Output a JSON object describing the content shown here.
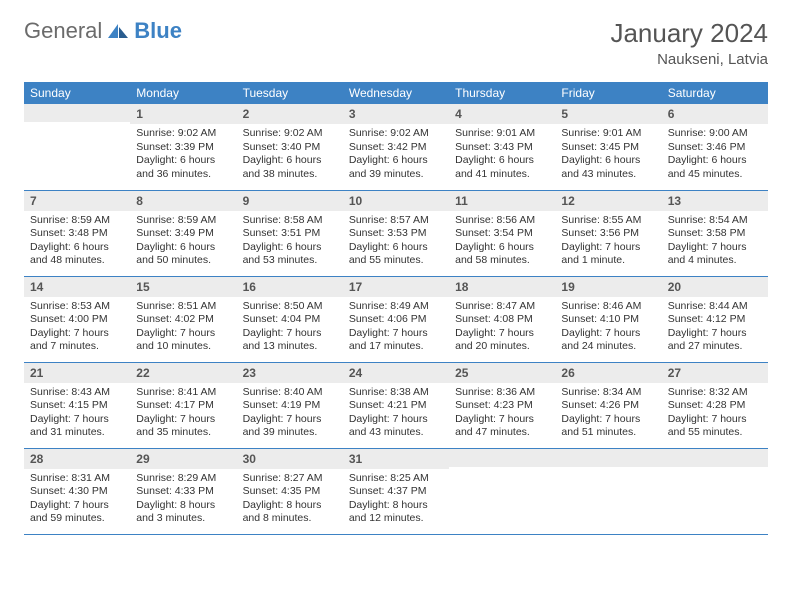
{
  "logo": {
    "text1": "General",
    "text2": "Blue"
  },
  "title": "January 2024",
  "location": "Naukseni, Latvia",
  "colors": {
    "header_bg": "#3d82c4",
    "header_text": "#ffffff",
    "daynum_bg": "#ececec",
    "daynum_text": "#555555",
    "cell_text": "#333333",
    "divider": "#3d82c4",
    "page_bg": "#ffffff",
    "title_color": "#555555"
  },
  "typography": {
    "month_title_fontsize": 26,
    "location_fontsize": 15,
    "dayheader_fontsize": 12,
    "daynum_fontsize": 12,
    "content_fontsize": 10.5
  },
  "day_headers": [
    "Sunday",
    "Monday",
    "Tuesday",
    "Wednesday",
    "Thursday",
    "Friday",
    "Saturday"
  ],
  "weeks": [
    [
      {
        "num": "",
        "lines": []
      },
      {
        "num": "1",
        "lines": [
          "Sunrise: 9:02 AM",
          "Sunset: 3:39 PM",
          "Daylight: 6 hours",
          "and 36 minutes."
        ]
      },
      {
        "num": "2",
        "lines": [
          "Sunrise: 9:02 AM",
          "Sunset: 3:40 PM",
          "Daylight: 6 hours",
          "and 38 minutes."
        ]
      },
      {
        "num": "3",
        "lines": [
          "Sunrise: 9:02 AM",
          "Sunset: 3:42 PM",
          "Daylight: 6 hours",
          "and 39 minutes."
        ]
      },
      {
        "num": "4",
        "lines": [
          "Sunrise: 9:01 AM",
          "Sunset: 3:43 PM",
          "Daylight: 6 hours",
          "and 41 minutes."
        ]
      },
      {
        "num": "5",
        "lines": [
          "Sunrise: 9:01 AM",
          "Sunset: 3:45 PM",
          "Daylight: 6 hours",
          "and 43 minutes."
        ]
      },
      {
        "num": "6",
        "lines": [
          "Sunrise: 9:00 AM",
          "Sunset: 3:46 PM",
          "Daylight: 6 hours",
          "and 45 minutes."
        ]
      }
    ],
    [
      {
        "num": "7",
        "lines": [
          "Sunrise: 8:59 AM",
          "Sunset: 3:48 PM",
          "Daylight: 6 hours",
          "and 48 minutes."
        ]
      },
      {
        "num": "8",
        "lines": [
          "Sunrise: 8:59 AM",
          "Sunset: 3:49 PM",
          "Daylight: 6 hours",
          "and 50 minutes."
        ]
      },
      {
        "num": "9",
        "lines": [
          "Sunrise: 8:58 AM",
          "Sunset: 3:51 PM",
          "Daylight: 6 hours",
          "and 53 minutes."
        ]
      },
      {
        "num": "10",
        "lines": [
          "Sunrise: 8:57 AM",
          "Sunset: 3:53 PM",
          "Daylight: 6 hours",
          "and 55 minutes."
        ]
      },
      {
        "num": "11",
        "lines": [
          "Sunrise: 8:56 AM",
          "Sunset: 3:54 PM",
          "Daylight: 6 hours",
          "and 58 minutes."
        ]
      },
      {
        "num": "12",
        "lines": [
          "Sunrise: 8:55 AM",
          "Sunset: 3:56 PM",
          "Daylight: 7 hours",
          "and 1 minute."
        ]
      },
      {
        "num": "13",
        "lines": [
          "Sunrise: 8:54 AM",
          "Sunset: 3:58 PM",
          "Daylight: 7 hours",
          "and 4 minutes."
        ]
      }
    ],
    [
      {
        "num": "14",
        "lines": [
          "Sunrise: 8:53 AM",
          "Sunset: 4:00 PM",
          "Daylight: 7 hours",
          "and 7 minutes."
        ]
      },
      {
        "num": "15",
        "lines": [
          "Sunrise: 8:51 AM",
          "Sunset: 4:02 PM",
          "Daylight: 7 hours",
          "and 10 minutes."
        ]
      },
      {
        "num": "16",
        "lines": [
          "Sunrise: 8:50 AM",
          "Sunset: 4:04 PM",
          "Daylight: 7 hours",
          "and 13 minutes."
        ]
      },
      {
        "num": "17",
        "lines": [
          "Sunrise: 8:49 AM",
          "Sunset: 4:06 PM",
          "Daylight: 7 hours",
          "and 17 minutes."
        ]
      },
      {
        "num": "18",
        "lines": [
          "Sunrise: 8:47 AM",
          "Sunset: 4:08 PM",
          "Daylight: 7 hours",
          "and 20 minutes."
        ]
      },
      {
        "num": "19",
        "lines": [
          "Sunrise: 8:46 AM",
          "Sunset: 4:10 PM",
          "Daylight: 7 hours",
          "and 24 minutes."
        ]
      },
      {
        "num": "20",
        "lines": [
          "Sunrise: 8:44 AM",
          "Sunset: 4:12 PM",
          "Daylight: 7 hours",
          "and 27 minutes."
        ]
      }
    ],
    [
      {
        "num": "21",
        "lines": [
          "Sunrise: 8:43 AM",
          "Sunset: 4:15 PM",
          "Daylight: 7 hours",
          "and 31 minutes."
        ]
      },
      {
        "num": "22",
        "lines": [
          "Sunrise: 8:41 AM",
          "Sunset: 4:17 PM",
          "Daylight: 7 hours",
          "and 35 minutes."
        ]
      },
      {
        "num": "23",
        "lines": [
          "Sunrise: 8:40 AM",
          "Sunset: 4:19 PM",
          "Daylight: 7 hours",
          "and 39 minutes."
        ]
      },
      {
        "num": "24",
        "lines": [
          "Sunrise: 8:38 AM",
          "Sunset: 4:21 PM",
          "Daylight: 7 hours",
          "and 43 minutes."
        ]
      },
      {
        "num": "25",
        "lines": [
          "Sunrise: 8:36 AM",
          "Sunset: 4:23 PM",
          "Daylight: 7 hours",
          "and 47 minutes."
        ]
      },
      {
        "num": "26",
        "lines": [
          "Sunrise: 8:34 AM",
          "Sunset: 4:26 PM",
          "Daylight: 7 hours",
          "and 51 minutes."
        ]
      },
      {
        "num": "27",
        "lines": [
          "Sunrise: 8:32 AM",
          "Sunset: 4:28 PM",
          "Daylight: 7 hours",
          "and 55 minutes."
        ]
      }
    ],
    [
      {
        "num": "28",
        "lines": [
          "Sunrise: 8:31 AM",
          "Sunset: 4:30 PM",
          "Daylight: 7 hours",
          "and 59 minutes."
        ]
      },
      {
        "num": "29",
        "lines": [
          "Sunrise: 8:29 AM",
          "Sunset: 4:33 PM",
          "Daylight: 8 hours",
          "and 3 minutes."
        ]
      },
      {
        "num": "30",
        "lines": [
          "Sunrise: 8:27 AM",
          "Sunset: 4:35 PM",
          "Daylight: 8 hours",
          "and 8 minutes."
        ]
      },
      {
        "num": "31",
        "lines": [
          "Sunrise: 8:25 AM",
          "Sunset: 4:37 PM",
          "Daylight: 8 hours",
          "and 12 minutes."
        ]
      },
      {
        "num": "",
        "lines": []
      },
      {
        "num": "",
        "lines": []
      },
      {
        "num": "",
        "lines": []
      }
    ]
  ]
}
